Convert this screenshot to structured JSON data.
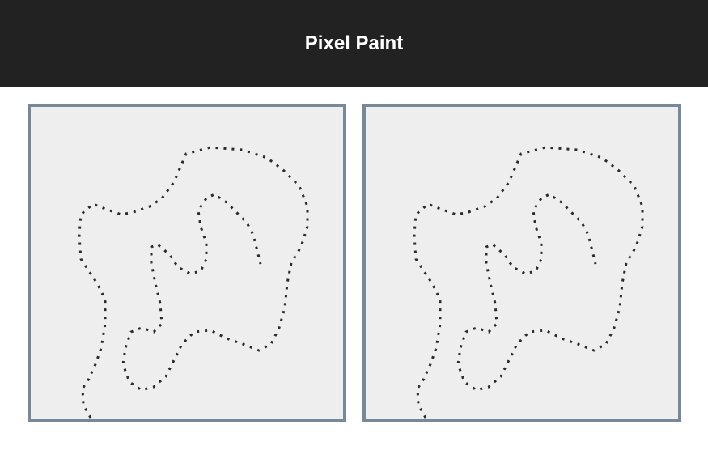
{
  "header": {
    "title": "Pixel Paint"
  }
}
